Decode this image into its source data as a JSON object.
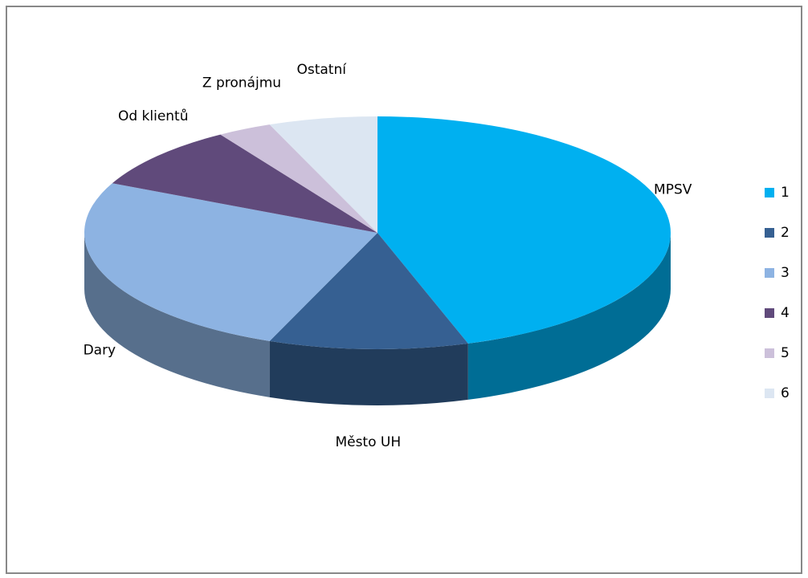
{
  "chart_data": {
    "type": "pie",
    "categories": [
      "MPSV",
      "Město UH",
      "Dary",
      "Od klientů",
      "Z pronájmu",
      "Ostatní"
    ],
    "values": [
      45,
      11,
      26,
      9,
      3,
      6
    ],
    "colors": [
      "#00b0f0",
      "#366092",
      "#8db3e2",
      "#604a7b",
      "#ccc0da",
      "#dce6f2"
    ],
    "legend": [
      1,
      2,
      3,
      4,
      5,
      6
    ],
    "legend_position": "right"
  }
}
